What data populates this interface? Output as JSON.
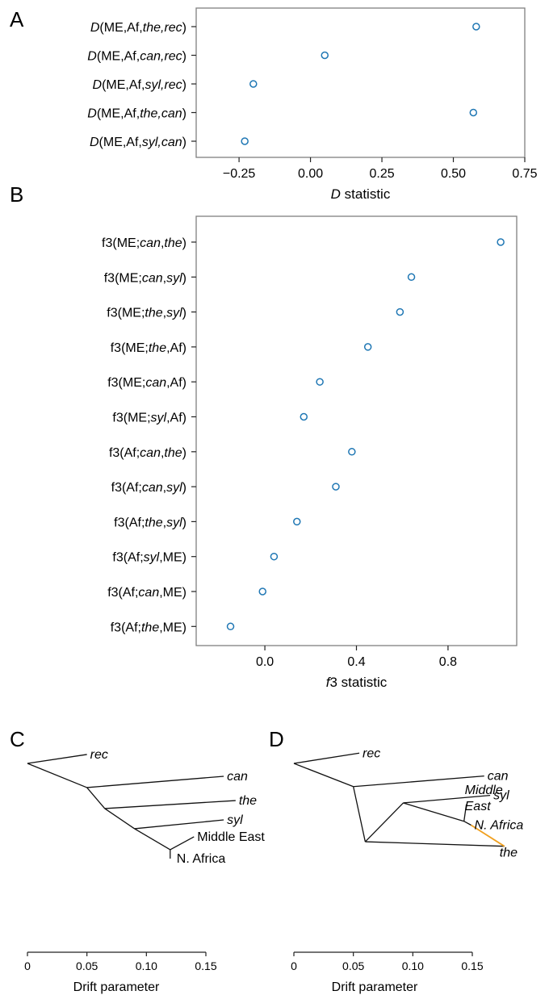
{
  "panel_letters": {
    "a": "A",
    "b": "B",
    "c": "C",
    "d": "D"
  },
  "colors": {
    "marker": "#1f77b4",
    "admixture_edge": "#f0a020",
    "tree_edge": "#111111",
    "frame": "#7f7f7f"
  },
  "chart_data": [
    {
      "panel": "A",
      "type": "scatter",
      "xlabel_italic": "D",
      "xlabel_rest": " statistic",
      "xlim": [
        -0.4,
        0.75
      ],
      "xticks": [
        -0.25,
        0.0,
        0.25,
        0.5,
        0.75
      ],
      "xtick_labels": [
        "−0.25",
        "0.00",
        "0.25",
        "0.50",
        "0.75"
      ],
      "rows": [
        {
          "label": [
            {
              "t": "D",
              "i": true
            },
            {
              "t": "(ME,Af,",
              "i": false
            },
            {
              "t": "the,rec",
              "i": true
            },
            {
              "t": ")",
              "i": false
            }
          ],
          "value": 0.58
        },
        {
          "label": [
            {
              "t": "D",
              "i": true
            },
            {
              "t": "(ME,Af,",
              "i": false
            },
            {
              "t": "can,rec",
              "i": true
            },
            {
              "t": ")",
              "i": false
            }
          ],
          "value": 0.05
        },
        {
          "label": [
            {
              "t": "D",
              "i": true
            },
            {
              "t": "(ME,Af,",
              "i": false
            },
            {
              "t": "syl,rec",
              "i": true
            },
            {
              "t": ")",
              "i": false
            }
          ],
          "value": -0.2
        },
        {
          "label": [
            {
              "t": "D",
              "i": true
            },
            {
              "t": "(ME,Af,",
              "i": false
            },
            {
              "t": "the,can",
              "i": true
            },
            {
              "t": ")",
              "i": false
            }
          ],
          "value": 0.57
        },
        {
          "label": [
            {
              "t": "D",
              "i": true
            },
            {
              "t": "(ME,Af,",
              "i": false
            },
            {
              "t": "syl,can",
              "i": true
            },
            {
              "t": ")",
              "i": false
            }
          ],
          "value": -0.23
        }
      ]
    },
    {
      "panel": "B",
      "type": "scatter",
      "xlabel_italic": "f",
      "xlabel_rest": "3 statistic",
      "xlim": [
        -0.3,
        1.1
      ],
      "xticks": [
        0.0,
        0.4,
        0.8
      ],
      "xtick_labels": [
        "0.0",
        "0.4",
        "0.8"
      ],
      "rows": [
        {
          "label": [
            {
              "t": "f3(ME;",
              "i": false
            },
            {
              "t": "can",
              "i": true
            },
            {
              "t": ",",
              "i": false
            },
            {
              "t": "the",
              "i": true
            },
            {
              "t": ")",
              "i": false
            }
          ],
          "value": 1.03
        },
        {
          "label": [
            {
              "t": "f3(ME;",
              "i": false
            },
            {
              "t": "can",
              "i": true
            },
            {
              "t": ",",
              "i": false
            },
            {
              "t": "syl",
              "i": true
            },
            {
              "t": ")",
              "i": false
            }
          ],
          "value": 0.64
        },
        {
          "label": [
            {
              "t": "f3(ME;",
              "i": false
            },
            {
              "t": "the",
              "i": true
            },
            {
              "t": ",",
              "i": false
            },
            {
              "t": "syl",
              "i": true
            },
            {
              "t": ")",
              "i": false
            }
          ],
          "value": 0.59
        },
        {
          "label": [
            {
              "t": "f3(ME;",
              "i": false
            },
            {
              "t": "the",
              "i": true
            },
            {
              "t": ",Af)",
              "i": false
            }
          ],
          "value": 0.45
        },
        {
          "label": [
            {
              "t": "f3(ME;",
              "i": false
            },
            {
              "t": "can",
              "i": true
            },
            {
              "t": ",Af)",
              "i": false
            }
          ],
          "value": 0.24
        },
        {
          "label": [
            {
              "t": "f3(ME;",
              "i": false
            },
            {
              "t": "syl",
              "i": true
            },
            {
              "t": ",Af)",
              "i": false
            }
          ],
          "value": 0.17
        },
        {
          "label": [
            {
              "t": "f3(Af;",
              "i": false
            },
            {
              "t": "can",
              "i": true
            },
            {
              "t": ",",
              "i": false
            },
            {
              "t": "the",
              "i": true
            },
            {
              "t": ")",
              "i": false
            }
          ],
          "value": 0.38
        },
        {
          "label": [
            {
              "t": "f3(Af;",
              "i": false
            },
            {
              "t": "can",
              "i": true
            },
            {
              "t": ",",
              "i": false
            },
            {
              "t": "syl",
              "i": true
            },
            {
              "t": ")",
              "i": false
            }
          ],
          "value": 0.31
        },
        {
          "label": [
            {
              "t": "f3(Af;",
              "i": false
            },
            {
              "t": "the",
              "i": true
            },
            {
              "t": ",",
              "i": false
            },
            {
              "t": "syl",
              "i": true
            },
            {
              "t": ")",
              "i": false
            }
          ],
          "value": 0.14
        },
        {
          "label": [
            {
              "t": "f3(Af;",
              "i": false
            },
            {
              "t": "syl",
              "i": true
            },
            {
              "t": ",ME)",
              "i": false
            }
          ],
          "value": 0.04
        },
        {
          "label": [
            {
              "t": "f3(Af;",
              "i": false
            },
            {
              "t": "can",
              "i": true
            },
            {
              "t": ",ME)",
              "i": false
            }
          ],
          "value": -0.01
        },
        {
          "label": [
            {
              "t": "f3(Af;",
              "i": false
            },
            {
              "t": "the",
              "i": true
            },
            {
              "t": ",ME)",
              "i": false
            }
          ],
          "value": -0.15
        }
      ]
    },
    {
      "panel": "C",
      "type": "tree",
      "xlabel": "Drift parameter",
      "xlim": [
        0,
        0.15
      ],
      "xticks": [
        0,
        0.05,
        0.1,
        0.15
      ],
      "xtick_labels": [
        "0",
        "0.05",
        "0.10",
        "0.15"
      ],
      "nodes": {
        "root": [
          0.0,
          0.0
        ],
        "n1": [
          0.05,
          1.76
        ],
        "n2": [
          0.065,
          3.29
        ],
        "n3": [
          0.09,
          4.76
        ],
        "n4": [
          0.12,
          6.29
        ],
        "rec": [
          0.05,
          -0.65
        ],
        "can": [
          0.165,
          0.94
        ],
        "the": [
          0.175,
          2.71
        ],
        "syl": [
          0.165,
          4.12
        ],
        "ME": [
          0.14,
          5.35
        ],
        "NA": [
          0.12,
          6.94
        ]
      },
      "edges": [
        [
          "root",
          "rec"
        ],
        [
          "root",
          "n1"
        ],
        [
          "n1",
          "can"
        ],
        [
          "n1",
          "n2"
        ],
        [
          "n2",
          "the"
        ],
        [
          "n2",
          "n3"
        ],
        [
          "n3",
          "syl"
        ],
        [
          "n3",
          "n4"
        ],
        [
          "n4",
          "ME"
        ],
        [
          "n4",
          "NA"
        ]
      ],
      "leaves": [
        {
          "node": "rec",
          "text": "rec",
          "italic": true,
          "dx": 4,
          "dy": 5
        },
        {
          "node": "can",
          "text": "can",
          "italic": true,
          "dx": 4,
          "dy": 5
        },
        {
          "node": "the",
          "text": "the",
          "italic": true,
          "dx": 4,
          "dy": 5
        },
        {
          "node": "syl",
          "text": "syl",
          "italic": true,
          "dx": 4,
          "dy": 5
        },
        {
          "node": "ME",
          "text": "Middle East",
          "italic": false,
          "dx": 4,
          "dy": 5
        },
        {
          "node": "NA",
          "text": "N. Africa",
          "italic": false,
          "dx": 8,
          "dy": 5
        }
      ]
    },
    {
      "panel": "D",
      "type": "tree",
      "xlabel": "Drift parameter",
      "xlim": [
        0,
        0.15
      ],
      "xticks": [
        0,
        0.05,
        0.1,
        0.15
      ],
      "xtick_labels": [
        "0",
        "0.05",
        "0.10",
        "0.15"
      ],
      "nodes": {
        "root": [
          0.0,
          0.0
        ],
        "n1": [
          0.05,
          1.69
        ],
        "n2": [
          0.06,
          5.71
        ],
        "n3": [
          0.092,
          2.88
        ],
        "n4": [
          0.143,
          4.22
        ],
        "rec": [
          0.055,
          -0.75
        ],
        "can": [
          0.16,
          0.92
        ],
        "syl": [
          0.165,
          2.33
        ],
        "ME": [
          0.145,
          3.0
        ],
        "NA": [
          0.149,
          4.5
        ],
        "the": [
          0.177,
          6.04
        ]
      },
      "edges": [
        [
          "root",
          "rec"
        ],
        [
          "root",
          "n1"
        ],
        [
          "n1",
          "can"
        ],
        [
          "n1",
          "n2"
        ],
        [
          "n2",
          "n3"
        ],
        [
          "n2",
          "the"
        ],
        [
          "n3",
          "syl"
        ],
        [
          "n3",
          "n4"
        ],
        [
          "n4",
          "ME"
        ],
        [
          "n4",
          "NA"
        ]
      ],
      "admixture_edges": [
        [
          "NA",
          "the"
        ]
      ],
      "leaves": [
        {
          "node": "rec",
          "text": "rec",
          "italic": true,
          "dx": 4,
          "dy": 5
        },
        {
          "node": "can",
          "text": "can",
          "italic": true,
          "dx": 4,
          "dy": 5
        },
        {
          "node": "syl",
          "text": "syl",
          "italic": true,
          "dx": 4,
          "dy": 5
        },
        {
          "node": "ME",
          "text": "Middle",
          "italic": true,
          "dx": -2,
          "dy": -13
        },
        {
          "node": "ME",
          "text": "East",
          "italic": true,
          "dx": -2,
          "dy": 7
        },
        {
          "node": "NA",
          "text": "N. Africa",
          "italic": true,
          "dx": 4,
          "dy": 5
        },
        {
          "node": "the",
          "text": "the",
          "italic": true,
          "dx": -6,
          "dy": 13
        }
      ]
    }
  ]
}
